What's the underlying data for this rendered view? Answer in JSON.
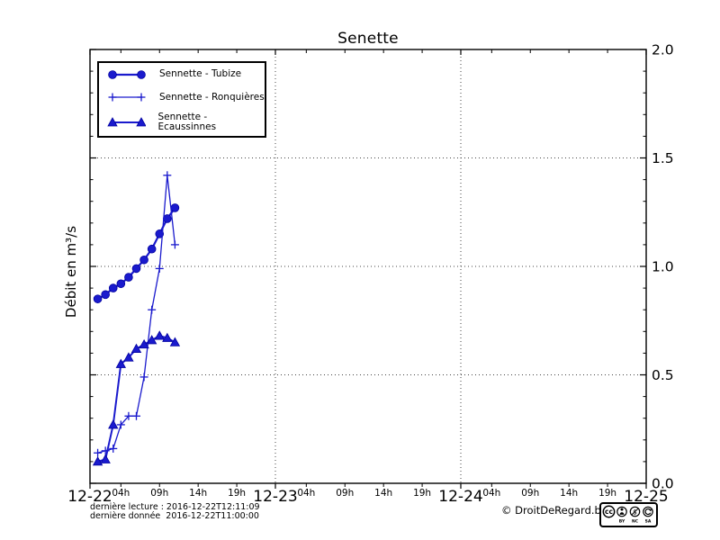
{
  "title": "Senette",
  "y_axis": {
    "label": "Débit en m³/s",
    "range": [
      0.0,
      2.0
    ],
    "minor_step": 0.1,
    "ticks": [
      {
        "v": 0.0,
        "label": "0.0"
      },
      {
        "v": 0.5,
        "label": "0.5"
      },
      {
        "v": 1.0,
        "label": "1.0"
      },
      {
        "v": 1.5,
        "label": "1.5"
      },
      {
        "v": 2.0,
        "label": "2.0"
      }
    ]
  },
  "x_axis": {
    "range_hours": [
      0,
      72
    ],
    "day_ticks": [
      {
        "hours": 0,
        "label": "12-22"
      },
      {
        "hours": 24,
        "label": "12-23"
      },
      {
        "hours": 48,
        "label": "12-24"
      },
      {
        "hours": 72,
        "label": "12-25"
      }
    ],
    "hour_ticks": [
      {
        "hours": 4,
        "label": "04h"
      },
      {
        "hours": 9,
        "label": "09h"
      },
      {
        "hours": 14,
        "label": "14h"
      },
      {
        "hours": 19,
        "label": "19h"
      },
      {
        "hours": 28,
        "label": "04h"
      },
      {
        "hours": 33,
        "label": "09h"
      },
      {
        "hours": 38,
        "label": "14h"
      },
      {
        "hours": 43,
        "label": "19h"
      },
      {
        "hours": 52,
        "label": "04h"
      },
      {
        "hours": 57,
        "label": "09h"
      },
      {
        "hours": 62,
        "label": "14h"
      },
      {
        "hours": 67,
        "label": "19h"
      }
    ],
    "grid_vertical_hours": [
      24,
      48
    ]
  },
  "footer": {
    "last_read": "dernière lecture : 2016-12-22T12:11:09",
    "last_data": "dernière donnée  2016-12-22T11:00:00",
    "copyright": "© DroitDeRegard.be",
    "license_labels": [
      "BY",
      "NC",
      "SA"
    ]
  },
  "colors": {
    "series": "#1a1acd",
    "marker_edge": "#0000a0",
    "axis": "#000000",
    "grid": "#444444"
  },
  "chart_data": {
    "type": "line",
    "title": "Senette",
    "ylabel": "Débit en m³/s",
    "ylim": [
      0.0,
      2.0
    ],
    "x_tick_days": [
      "12-22",
      "12-23",
      "12-24",
      "12-25"
    ],
    "grid": "dotted horizontal at 0.5/1.0/1.5 and vertical at day boundaries",
    "legend_position": "upper left",
    "x_hours_after_2016_12_22_00h": [
      1,
      2,
      3,
      4,
      5,
      6,
      7,
      8,
      9,
      10,
      11
    ],
    "series": [
      {
        "name": "Sennette - Tubize",
        "marker": "circle",
        "values": [
          0.85,
          0.87,
          0.9,
          0.92,
          0.95,
          0.99,
          1.03,
          1.08,
          1.15,
          1.22,
          1.27
        ]
      },
      {
        "name": "Sennette - Ronquières",
        "marker": "plus",
        "values": [
          0.14,
          0.15,
          0.16,
          0.27,
          0.31,
          0.31,
          0.49,
          0.8,
          0.99,
          1.42,
          1.1
        ]
      },
      {
        "name": "Sennette - Ecaussinnes",
        "marker": "triangle",
        "values": [
          0.1,
          0.11,
          0.27,
          0.55,
          0.58,
          0.62,
          0.64,
          0.66,
          0.68,
          0.67,
          0.65
        ]
      }
    ]
  }
}
